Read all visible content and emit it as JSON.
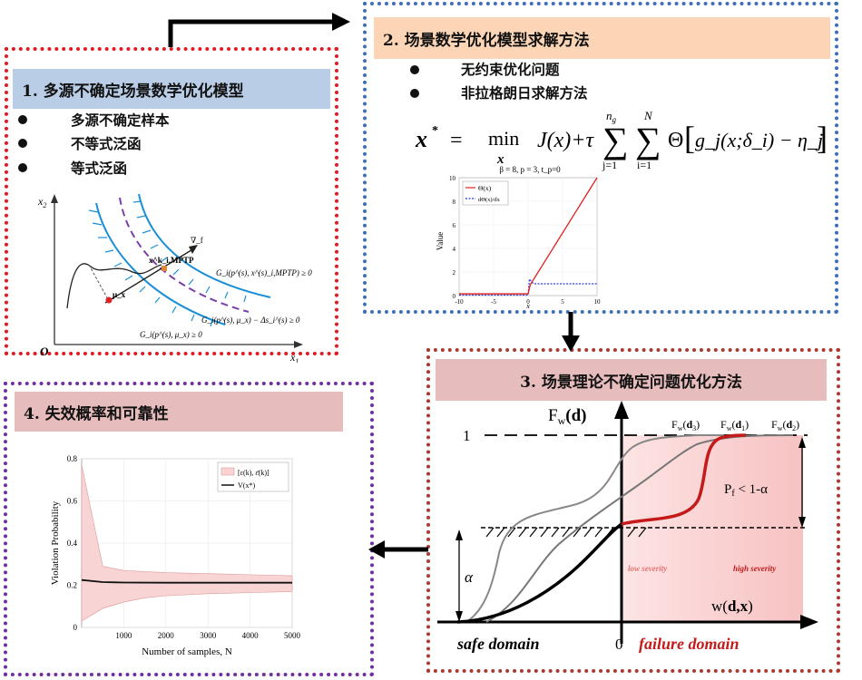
{
  "panel1": {
    "title": "1. 多源不确定场景数学优化模型",
    "bullets": [
      "多源不确定样本",
      "不等式泛函",
      "等式泛函"
    ],
    "sketch": {
      "x1": "x",
      "x1_sub": "1",
      "x2": "x",
      "x2_sub": "2",
      "origin": "O",
      "label_top": "G_i(p^(s), x^(s)_i,MPTP) ≥ 0",
      "label_mid": "G_i(p^(s), μ_x) − Δs_i^(s) ≥ 0",
      "label_bot": "G_i(p^(s), μ_x) ≥ 0",
      "pt_mptp": "x^k_i,MPTP",
      "pt_mu": "μ_x",
      "pt_grad": "∇_f"
    }
  },
  "panel2": {
    "title": "2. 场景数学优化模型求解方法",
    "bullets": [
      "无约束优化问题",
      "非拉格朗日求解方法"
    ],
    "formula": {
      "lhs": "x",
      "lhs_sup": "*",
      "eq": "=",
      "min": "min",
      "min_sub": "x",
      "body1": "J(x)+τ",
      "sum1_top": "n",
      "sum1_top_sub": "g",
      "sum1_bot": "j=1",
      "sum2_top": "N",
      "sum2_bot": "i=1",
      "theta": "Θ",
      "inner": "g_j(x;δ_i) − η_j"
    },
    "chart": {
      "title": "β = 8, p = 3, t_p=0",
      "ylabel": "Value",
      "xlabel": "x",
      "legend": [
        "Θ(x)",
        "dΘ(x)/dx"
      ],
      "yticks": [
        "0",
        "2",
        "4",
        "6",
        "8",
        "10"
      ],
      "xticks": [
        "-10",
        "-5",
        "0",
        "5",
        "10"
      ]
    }
  },
  "panel3": {
    "title": "3. 场景理论不确定问题优化方法",
    "y_label": "F",
    "y_label_sub": "w",
    "y_label_arg": "(d)",
    "one": "1",
    "zero": "0",
    "alpha": "α",
    "pf": "P",
    "pf_sub": "f",
    "pf_rest": " < 1-α",
    "x_label": "w(",
    "x_label_bold": "d,x",
    "x_label_end": ")",
    "curve_labels": [
      {
        "f": "F",
        "sub": "w",
        "arg": "d",
        "idx": "3"
      },
      {
        "f": "F",
        "sub": "w",
        "arg": "d",
        "idx": "1"
      },
      {
        "f": "F",
        "sub": "w",
        "arg": "d",
        "idx": "2"
      }
    ],
    "low": "low severity",
    "high": "high severity",
    "safe": "safe domain",
    "failure": "failure domain"
  },
  "panel4": {
    "title": "4. 失效概率和可靠性",
    "chart": {
      "ylabel": "Violation Probability",
      "xlabel": "Number of samples, N",
      "legend": [
        "[ε(k), ε̄(k)]",
        "V(x*)"
      ],
      "yticks": [
        "0",
        "0.2",
        "0.4",
        "0.6",
        "0.8"
      ],
      "xticks": [
        "1000",
        "2000",
        "3000",
        "4000",
        "5000"
      ]
    }
  },
  "colors": {
    "p1_border": "#e01b22",
    "p2_border": "#3f6fb5",
    "p3_border": "#a83a32",
    "p4_border": "#7030a0",
    "failure_red": "#c41a1a"
  }
}
